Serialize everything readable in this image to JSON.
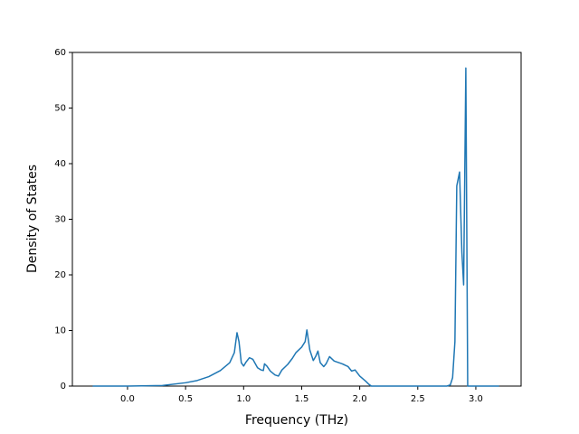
{
  "chart_data": {
    "type": "line",
    "xlabel": "Frequency (THz)",
    "ylabel": "Density of States",
    "x": [
      -0.3,
      0.0,
      0.3,
      0.5,
      0.6,
      0.7,
      0.8,
      0.88,
      0.92,
      0.943,
      0.96,
      0.98,
      1.0,
      1.02,
      1.05,
      1.08,
      1.12,
      1.15,
      1.17,
      1.18,
      1.2,
      1.23,
      1.27,
      1.3,
      1.33,
      1.38,
      1.42,
      1.45,
      1.5,
      1.53,
      1.545,
      1.57,
      1.6,
      1.62,
      1.64,
      1.66,
      1.69,
      1.71,
      1.74,
      1.78,
      1.85,
      1.9,
      1.93,
      1.96,
      2.0,
      2.05,
      2.08,
      2.1,
      2.75,
      2.78,
      2.8,
      2.82,
      2.836,
      2.86,
      2.88,
      2.895,
      2.914,
      2.93,
      3.2
    ],
    "values": [
      0,
      0,
      0.1,
      0.6,
      1.0,
      1.7,
      2.8,
      4.2,
      6.0,
      9.6,
      8.0,
      4.2,
      3.6,
      4.3,
      5.1,
      4.8,
      3.3,
      2.9,
      2.8,
      4.0,
      3.6,
      2.7,
      2.0,
      1.8,
      2.9,
      3.9,
      5.0,
      6.0,
      7.0,
      8.0,
      10.1,
      6.5,
      4.6,
      5.3,
      6.3,
      4.2,
      3.5,
      4.0,
      5.3,
      4.5,
      4.0,
      3.5,
      2.7,
      2.9,
      1.8,
      0.9,
      0.3,
      0,
      0,
      0.2,
      1.5,
      8.0,
      36.0,
      38.5,
      24.0,
      18.2,
      57.2,
      0,
      0
    ],
    "color": "#1f77b4",
    "xlim": [
      -0.475,
      3.39
    ],
    "ylim": [
      0,
      60
    ],
    "xticks": [
      {
        "value": 0,
        "label": "0.0"
      },
      0.5,
      {
        "value": 1,
        "label": "1.0"
      },
      1.5,
      {
        "value": 2,
        "label": "2.0"
      },
      2.5,
      {
        "value": 3,
        "label": "3.0"
      }
    ],
    "yticks": [
      0,
      10,
      20,
      30,
      40,
      50,
      60
    ]
  }
}
